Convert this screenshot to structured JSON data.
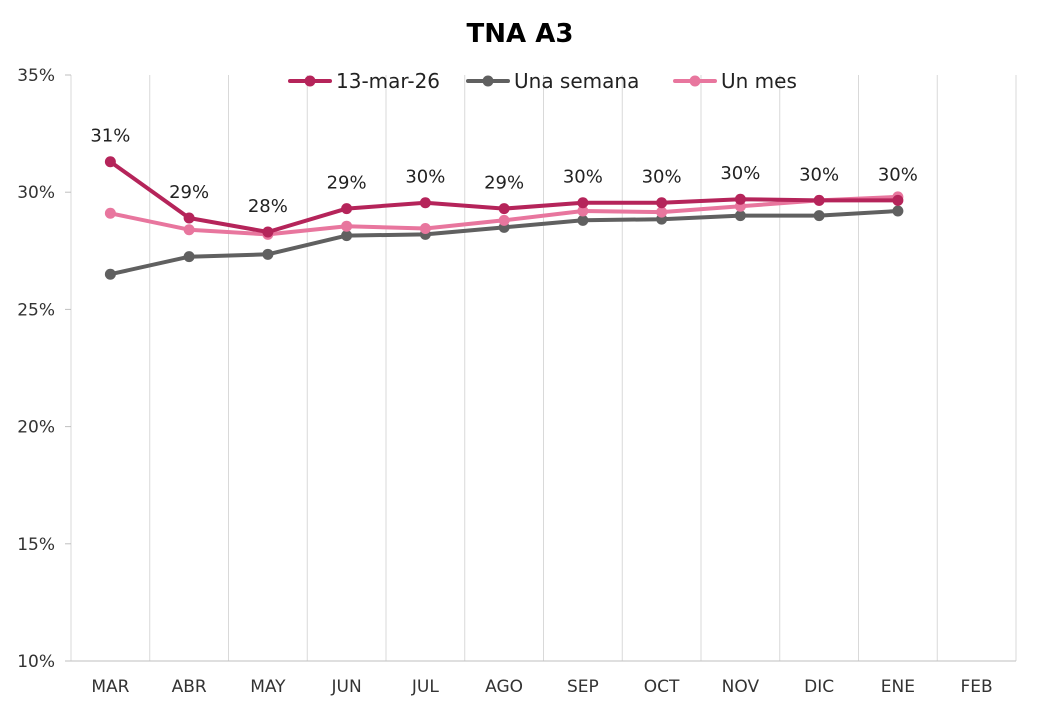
{
  "chart_data": {
    "type": "line",
    "title": "TNA A3",
    "xlabel": "",
    "ylabel": "",
    "categories": [
      "MAR",
      "ABR",
      "MAY",
      "JUN",
      "JUL",
      "AGO",
      "SEP",
      "OCT",
      "NOV",
      "DIC",
      "ENE",
      "FEB"
    ],
    "ylim": [
      0.1,
      0.35
    ],
    "yticks": [
      0.1,
      0.15,
      0.2,
      0.25,
      0.3,
      0.35
    ],
    "ytick_labels": [
      "10%",
      "15%",
      "20%",
      "25%",
      "30%",
      "35%"
    ],
    "grid": "vertical",
    "legend_position": "top",
    "series": [
      {
        "name": "13-mar-26",
        "color": "#B5245A",
        "values": [
          0.313,
          0.289,
          0.283,
          0.293,
          0.2955,
          0.293,
          0.2955,
          0.2955,
          0.297,
          0.2965,
          0.2965,
          null
        ],
        "data_labels": [
          "31%",
          "29%",
          "28%",
          "29%",
          "30%",
          "29%",
          "30%",
          "30%",
          "30%",
          "30%",
          "30%",
          ""
        ]
      },
      {
        "name": "Una semana",
        "color": "#606060",
        "values": [
          0.265,
          0.2725,
          0.2735,
          0.2815,
          0.282,
          0.285,
          0.288,
          0.2885,
          0.29,
          0.29,
          0.292,
          null
        ]
      },
      {
        "name": "Un mes",
        "color": "#E8769E",
        "values": [
          0.291,
          0.284,
          0.282,
          0.2855,
          0.2845,
          0.288,
          0.292,
          0.2915,
          0.294,
          0.2965,
          0.298,
          null
        ]
      }
    ]
  }
}
